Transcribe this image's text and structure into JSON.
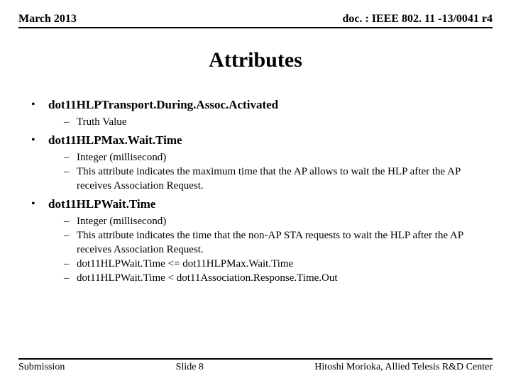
{
  "header": {
    "left": "March 2013",
    "right": "doc. : IEEE 802. 11 -13/0041 r4"
  },
  "title": "Attributes",
  "items": [
    {
      "head": "dot11HLPTransport.During.Assoc.Activated",
      "sub": [
        "Truth Value"
      ]
    },
    {
      "head": "dot11HLPMax.Wait.Time",
      "sub": [
        "Integer (millisecond)",
        "This attribute indicates the maximum time that the AP allows to wait the HLP after the AP receives Association Request."
      ]
    },
    {
      "head": "dot11HLPWait.Time",
      "sub": [
        "Integer (millisecond)",
        "This attribute indicates the time that the non-AP STA requests to wait the HLP after the AP receives Association Request.",
        "dot11HLPWait.Time <= dot11HLPMax.Wait.Time",
        "dot11HLPWait.Time < dot11Association.Response.Time.Out"
      ]
    }
  ],
  "footer": {
    "left": "Submission",
    "center": "Slide 8",
    "right": "Hitoshi Morioka, Allied Telesis R&D Center"
  },
  "colors": {
    "background": "#ffffff",
    "text": "#000000",
    "rule": "#000000"
  }
}
